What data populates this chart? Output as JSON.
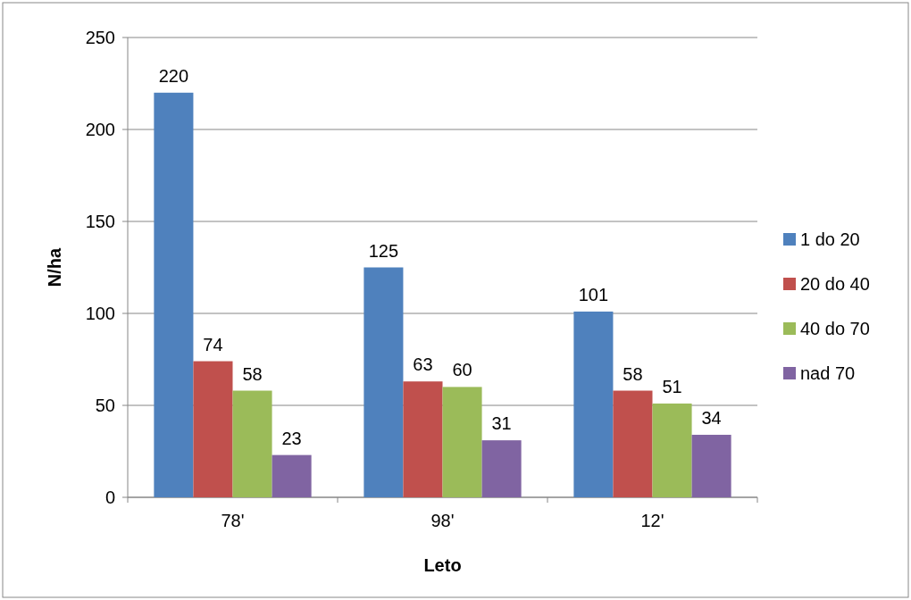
{
  "chart_data": {
    "type": "bar",
    "xlabel": "Leto",
    "ylabel": "N/ha",
    "categories": [
      "78'",
      "98'",
      "12'"
    ],
    "series": [
      {
        "name": "1 do 20",
        "color": "#4f81bd",
        "values": [
          220,
          125,
          101
        ]
      },
      {
        "name": "20 do 40",
        "color": "#c0504d",
        "values": [
          74,
          63,
          58
        ]
      },
      {
        "name": "40 do 70",
        "color": "#9bbb59",
        "values": [
          58,
          60,
          51
        ]
      },
      {
        "name": "nad 70",
        "color": "#8064a2",
        "values": [
          23,
          31,
          34
        ]
      }
    ],
    "ylim": [
      0,
      250
    ],
    "yticks": [
      0,
      50,
      100,
      150,
      200,
      250
    ],
    "grid": "y",
    "legend": "right",
    "data_labels": true
  }
}
